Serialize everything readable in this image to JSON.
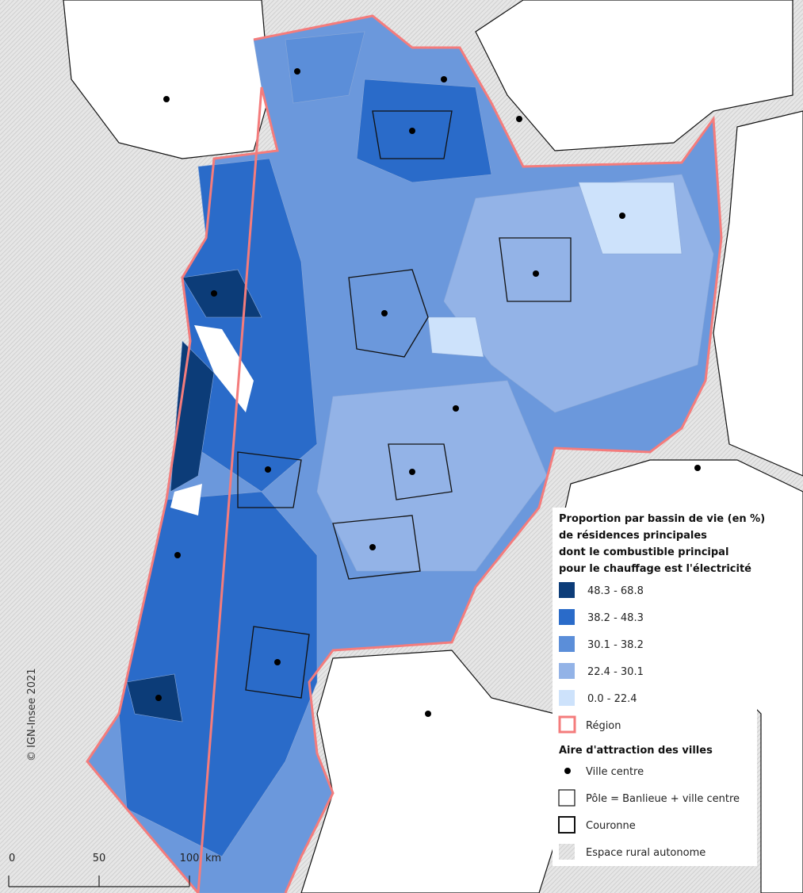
{
  "legend": {
    "title": [
      "Proportion par bassin de vie (en %)",
      "de résidences principales",
      "dont le combustible principal",
      "pour le chauffage est l'électricité"
    ],
    "classes": [
      {
        "label": "48.3 - 68.8",
        "color": "#0c3c78"
      },
      {
        "label": "38.2 - 48.3",
        "color": "#2a6bc9"
      },
      {
        "label": "30.1 - 38.2",
        "color": "#5b8ed9"
      },
      {
        "label": "22.4 - 30.1",
        "color": "#93b3e7"
      },
      {
        "label": "0.0 - 22.4",
        "color": "#cde2fb"
      }
    ],
    "region": {
      "label": "Région",
      "color": "#f47c7c"
    },
    "aav_title": "Aire d'attraction des villes",
    "aav_items": [
      "Ville centre",
      "Pôle = Banlieue + ville centre",
      "Couronne",
      "Espace rural autonome"
    ]
  },
  "copyright": "© IGN-Insee 2021",
  "scale": {
    "ticks": [
      0,
      50,
      100
    ],
    "unit": "km"
  }
}
